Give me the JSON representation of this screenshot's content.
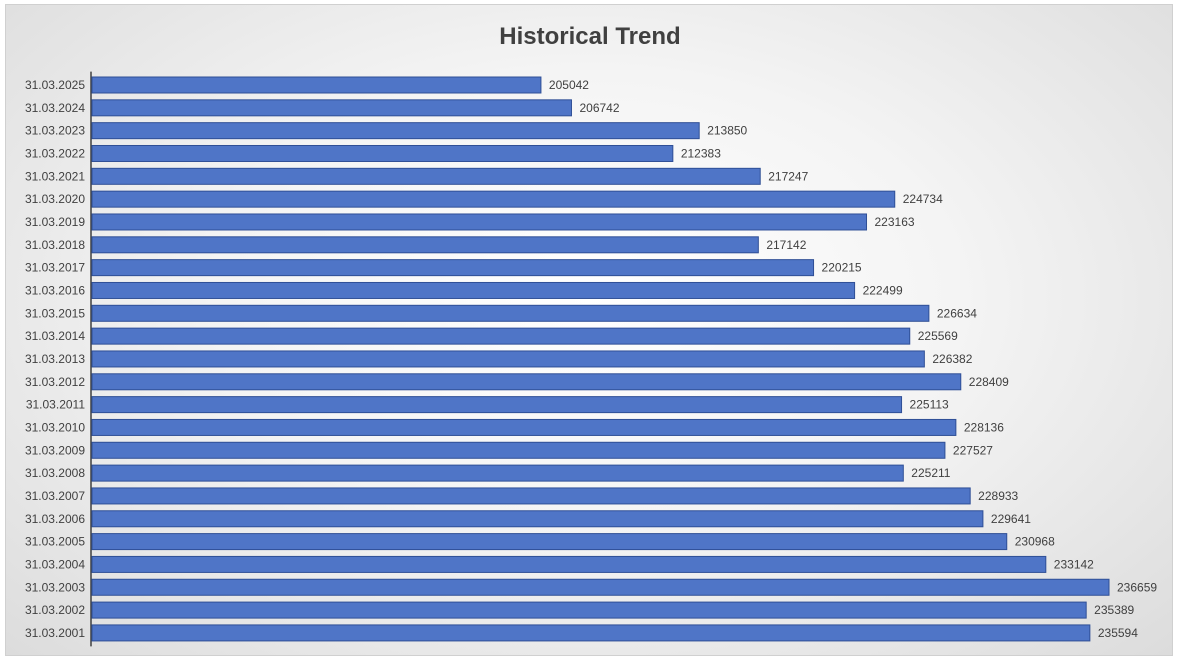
{
  "chart_data": {
    "type": "bar",
    "orientation": "horizontal",
    "title": "Historical Trend",
    "xlabel": "",
    "ylabel": "",
    "categories": [
      "31.03.2025",
      "31.03.2024",
      "31.03.2023",
      "31.03.2022",
      "31.03.2021",
      "31.03.2020",
      "31.03.2019",
      "31.03.2018",
      "31.03.2017",
      "31.03.2016",
      "31.03.2015",
      "31.03.2014",
      "31.03.2013",
      "31.03.2012",
      "31.03.2011",
      "31.03.2010",
      "31.03.2009",
      "31.03.2008",
      "31.03.2007",
      "31.03.2006",
      "31.03.2005",
      "31.03.2004",
      "31.03.2003",
      "31.03.2002",
      "31.03.2001"
    ],
    "values": [
      205042,
      206742,
      213850,
      212383,
      217247,
      224734,
      223163,
      217142,
      220215,
      222499,
      226634,
      225569,
      226382,
      228409,
      225113,
      228136,
      227527,
      225211,
      228933,
      229641,
      230968,
      233142,
      236659,
      235389,
      235594
    ],
    "xlim": [
      180000,
      236659
    ],
    "grid": false,
    "legend": "none",
    "bar_color": "#4f75c7"
  }
}
